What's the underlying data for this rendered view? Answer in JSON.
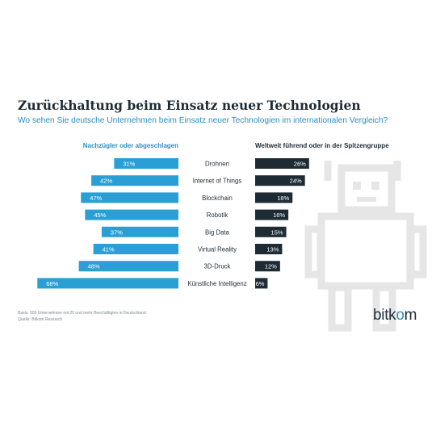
{
  "chart_data": {
    "type": "bar",
    "title": "Zurückhaltung beim Einsatz neuer Technologien",
    "subtitle": "Wo sehen Sie deutsche Unternehmen beim Einsatz neuer Technologien im internationalen Vergleich?",
    "categories": [
      "Drohnen",
      "Internet of Things",
      "Blockchain",
      "Robotik",
      "Big Data",
      "Virtual Reality",
      "3D-Druck",
      "Künstliche Intelligenz"
    ],
    "series": [
      {
        "name": "Nachzügler oder abgeschlagen",
        "values": [
          31,
          42,
          47,
          45,
          37,
          41,
          48,
          68
        ],
        "color": "#2a9fd6"
      },
      {
        "name": "Weltweit führend oder in der Spitzengruppe",
        "values": [
          26,
          24,
          18,
          16,
          15,
          13,
          12,
          6
        ],
        "color": "#1d2b35"
      }
    ],
    "value_suffix": "%",
    "layout": "diverging-horizontal"
  },
  "footnote": {
    "basis": "Basis: 505 Unternehmen mit 20 und mehr Beschäftigten in Deutschland",
    "source": "Quelle: Bitkom Research"
  },
  "logo": {
    "part1": "bitk",
    "part2": "o",
    "part3": "m"
  },
  "colors": {
    "accent": "#2a8fc4",
    "dark": "#1d2b35",
    "robot": "#e6e6e6"
  }
}
